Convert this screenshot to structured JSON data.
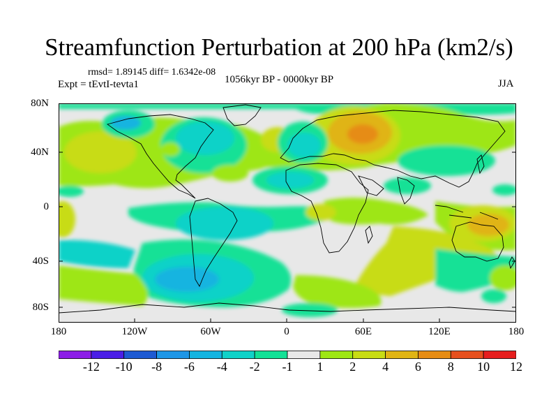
{
  "title": "Streamfunction Perturbation at 200 hPa (km2/s)",
  "stats": "rmsd= 1.89145 diff= 1.6342e-08",
  "experiment": "Expt = tEvtI-tevta1",
  "period": "1056kyr BP - 0000kyr BP",
  "season": "JJA",
  "lat_labels": [
    "80N",
    "40N",
    "0",
    "40S",
    "80S"
  ],
  "lon_labels": [
    "180",
    "120W",
    "60W",
    "0",
    "60E",
    "120E",
    "180"
  ],
  "colorbar": {
    "labels": [
      "-12",
      "-10",
      "-8",
      "-6",
      "-4",
      "-2",
      "-1",
      "1",
      "2",
      "4",
      "6",
      "8",
      "10",
      "12"
    ],
    "colors": [
      "#8c1ee6",
      "#4b1ee6",
      "#1e5ad2",
      "#1e96e6",
      "#14b4e0",
      "#10d2c8",
      "#12e196",
      "#e8e8e8",
      "#9ee614",
      "#c8dc14",
      "#e0b414",
      "#e68c14",
      "#e6501e",
      "#e61e1e"
    ]
  }
}
